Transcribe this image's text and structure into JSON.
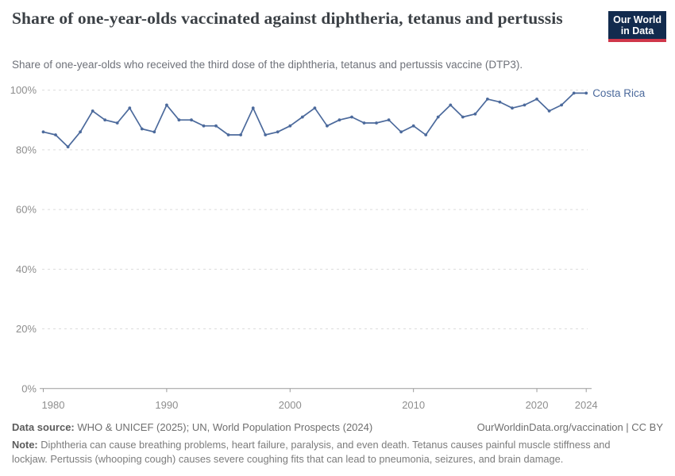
{
  "header": {
    "title": "Share of one-year-olds vaccinated against diphtheria, tetanus and pertussis",
    "subtitle": "Share of one-year-olds who received the third dose of the diphtheria, tetanus and pertussis vaccine (DTP3).",
    "logo_line1": "Our World",
    "logo_line2": "in Data",
    "logo_bg_color": "#122b4e",
    "logo_accent_color": "#d0374a"
  },
  "chart_data": {
    "type": "line",
    "title": "Share of one-year-olds vaccinated against diphtheria, tetanus and pertussis",
    "xlabel": "",
    "ylabel": "",
    "xlim": [
      1980,
      2024
    ],
    "ylim": [
      0,
      100
    ],
    "grid": "dashed horizontal gridlines, solid baseline at 0%",
    "legend_position": "label at end of line",
    "x_ticks": [
      1980,
      1990,
      2000,
      2010,
      2020,
      2024
    ],
    "y_ticks": [
      0,
      20,
      40,
      60,
      80,
      100
    ],
    "y_tick_suffix": "%",
    "axis_label_color": "#8e8e8e",
    "gridline_color": "#dcdcdc",
    "axis_line_color": "#9b9b9b",
    "series": [
      {
        "name": "Costa Rica",
        "color": "#4c6a9c",
        "years": [
          1980,
          1981,
          1982,
          1983,
          1984,
          1985,
          1986,
          1987,
          1988,
          1989,
          1990,
          1991,
          1992,
          1993,
          1994,
          1995,
          1996,
          1997,
          1998,
          1999,
          2000,
          2001,
          2002,
          2003,
          2004,
          2005,
          2006,
          2007,
          2008,
          2009,
          2010,
          2011,
          2012,
          2013,
          2014,
          2015,
          2016,
          2017,
          2018,
          2019,
          2020,
          2021,
          2022,
          2023,
          2024
        ],
        "values": [
          86,
          85,
          81,
          86,
          93,
          90,
          89,
          94,
          87,
          86,
          95,
          90,
          90,
          88,
          88,
          85,
          85,
          94,
          85,
          86,
          88,
          91,
          94,
          88,
          90,
          91,
          89,
          89,
          90,
          86,
          88,
          85,
          91,
          95,
          91,
          92,
          97,
          96,
          94,
          95,
          97,
          93,
          95,
          99,
          99
        ]
      }
    ]
  },
  "footer": {
    "source_label": "Data source:",
    "source_text": " WHO & UNICEF (2025); UN, World Population Prospects (2024)",
    "credit": "OurWorldinData.org/vaccination | CC BY",
    "note_label": "Note:",
    "note_text": " Diphtheria can cause breathing problems, heart failure, paralysis, and even death. Tetanus causes painful muscle stiffness and lockjaw. Pertussis (whooping cough) causes severe coughing fits that can lead to pneumonia, seizures, and brain damage."
  }
}
